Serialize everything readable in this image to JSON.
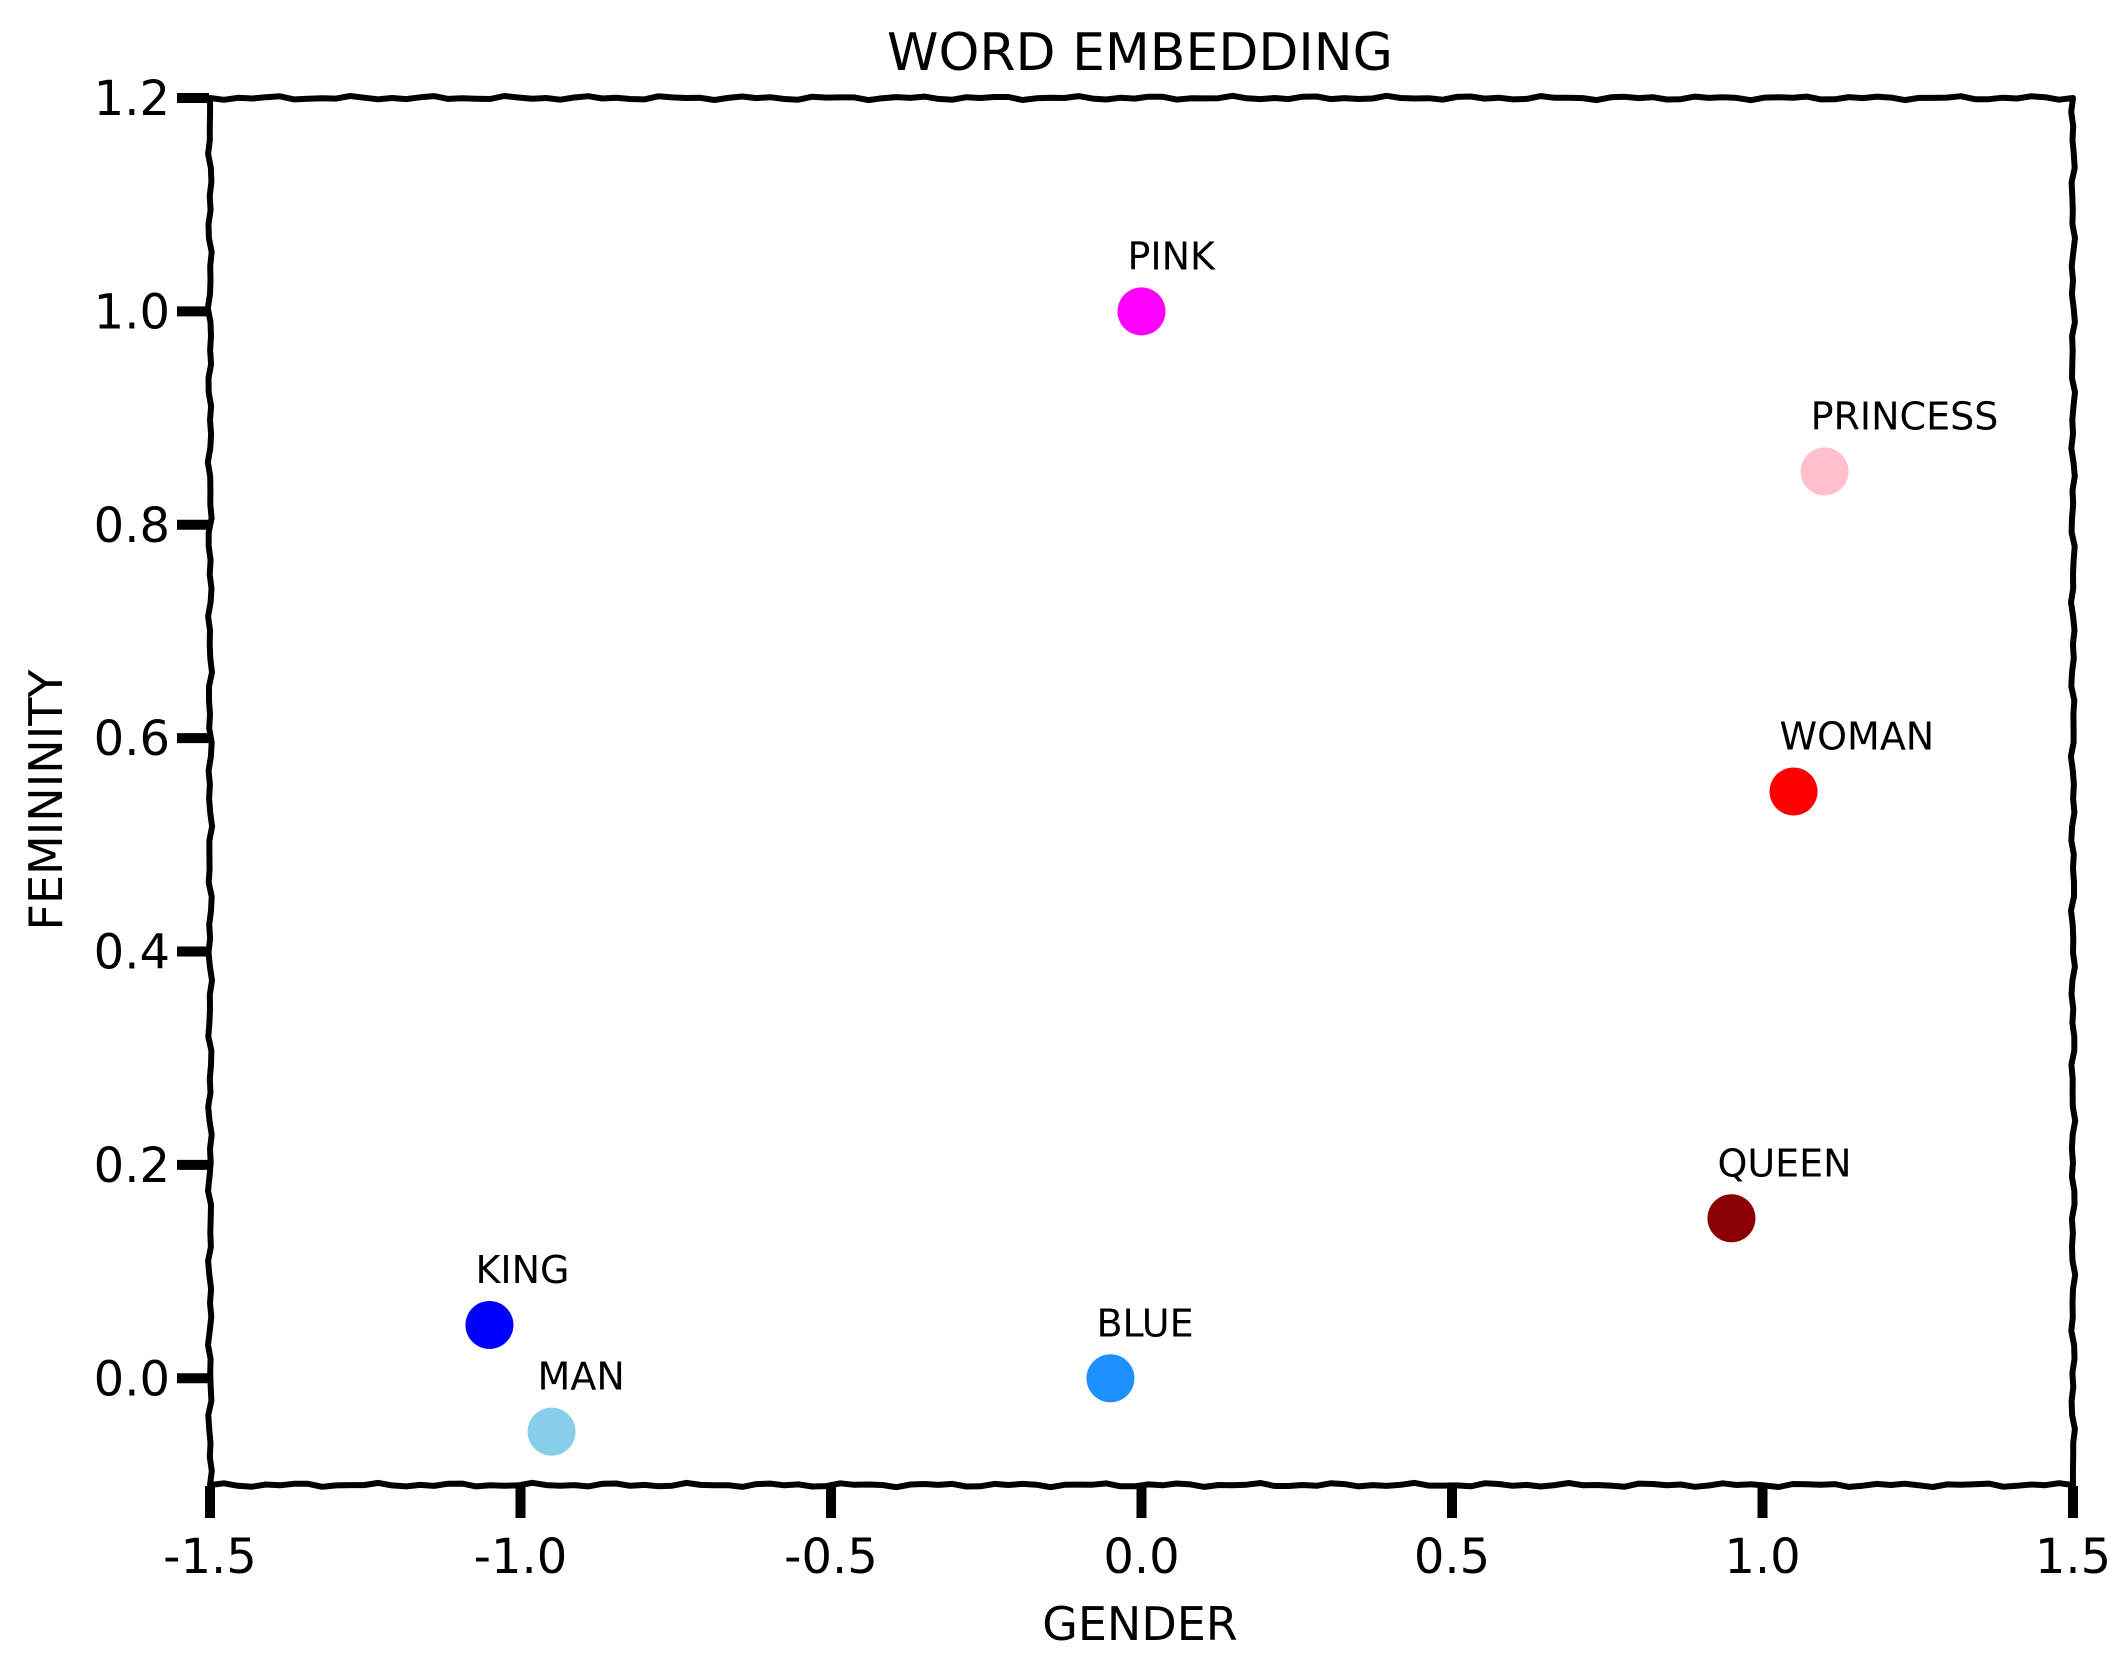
{
  "chart_data": {
    "type": "scatter",
    "title": "WORD EMBEDDING",
    "xlabel": "GENDER",
    "ylabel": "FEMININITY",
    "xlim": [
      -1.5,
      1.5
    ],
    "ylim": [
      -0.1,
      1.2
    ],
    "xticks": [
      {
        "value": -1.5,
        "label": "-1.5"
      },
      {
        "value": -1.0,
        "label": "-1.0"
      },
      {
        "value": -0.5,
        "label": "-0.5"
      },
      {
        "value": 0.0,
        "label": "0.0"
      },
      {
        "value": 0.5,
        "label": "0.5"
      },
      {
        "value": 1.0,
        "label": "1.0"
      },
      {
        "value": 1.5,
        "label": "1.5"
      }
    ],
    "yticks": [
      {
        "value": 0.0,
        "label": "0.0"
      },
      {
        "value": 0.2,
        "label": "0.2"
      },
      {
        "value": 0.4,
        "label": "0.4"
      },
      {
        "value": 0.6,
        "label": "0.6"
      },
      {
        "value": 0.8,
        "label": "0.8"
      },
      {
        "value": 1.0,
        "label": "1.0"
      },
      {
        "value": 1.2,
        "label": "1.2"
      }
    ],
    "grid": false,
    "style": "xkcd",
    "points": [
      {
        "label": "KING",
        "x": -1.05,
        "y": 0.05,
        "color": "#0000ff"
      },
      {
        "label": "MAN",
        "x": -0.95,
        "y": -0.05,
        "color": "#87ceeb"
      },
      {
        "label": "BLUE",
        "x": -0.05,
        "y": 0.0,
        "color": "#1e90ff"
      },
      {
        "label": "PINK",
        "x": 0.0,
        "y": 1.0,
        "color": "#ff00ff"
      },
      {
        "label": "QUEEN",
        "x": 0.95,
        "y": 0.15,
        "color": "#8b0000"
      },
      {
        "label": "WOMAN",
        "x": 1.05,
        "y": 0.55,
        "color": "#ff0000"
      },
      {
        "label": "PRINCESS",
        "x": 1.1,
        "y": 0.85,
        "color": "#ffc0cb"
      }
    ]
  }
}
